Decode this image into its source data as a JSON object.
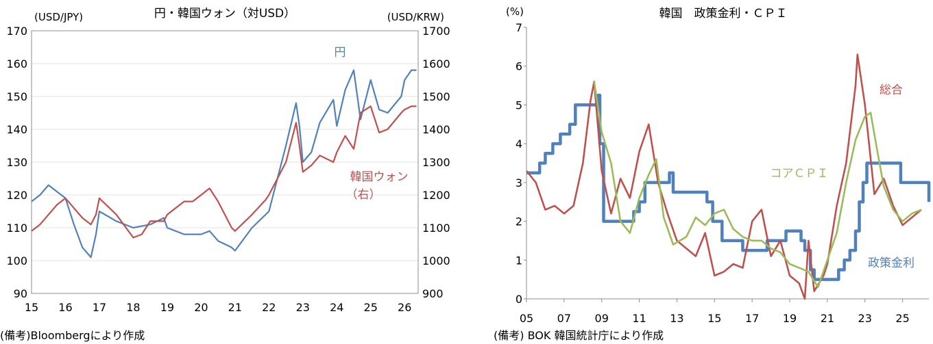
{
  "chart_data": [
    {
      "type": "line",
      "title": "円・韓国ウォン（対USD）",
      "ylabel_left": "(USD/JPY)",
      "ylabel_right": "(USD/KRW)",
      "ylim_left": [
        90,
        170
      ],
      "ylim_right": [
        900,
        1700
      ],
      "yticks_left": [
        "90",
        "100",
        "110",
        "120",
        "130",
        "140",
        "150",
        "160",
        "170"
      ],
      "yticks_right": [
        "900",
        "1000",
        "1100",
        "1200",
        "1300",
        "1400",
        "1500",
        "1600",
        "1700"
      ],
      "x_ticks": [
        "15",
        "16",
        "17",
        "18",
        "19",
        "20",
        "21",
        "22",
        "23",
        "24",
        "25",
        "26"
      ],
      "x_range": [
        2015.0,
        2026.4
      ],
      "note": "(備考)Bloombergにより作成",
      "series": [
        {
          "name": "円",
          "axis": "left",
          "color": "#4f81bd",
          "x": [
            2015.0,
            2015.25,
            2015.5,
            2015.75,
            2016.0,
            2016.25,
            2016.5,
            2016.75,
            2016.9,
            2017.0,
            2017.5,
            2018.0,
            2018.5,
            2018.9,
            2019.0,
            2019.5,
            2019.75,
            2020.0,
            2020.25,
            2020.5,
            2020.9,
            2021.0,
            2021.5,
            2021.9,
            2022.0,
            2022.25,
            2022.5,
            2022.8,
            2022.9,
            2023.0,
            2023.25,
            2023.5,
            2023.9,
            2024.0,
            2024.25,
            2024.5,
            2024.7,
            2025.0,
            2025.25,
            2025.5,
            2025.9,
            2026.0,
            2026.2,
            2026.35
          ],
          "y": [
            118,
            120,
            123,
            121,
            119,
            111,
            104,
            101,
            108,
            115,
            112,
            110,
            111,
            113,
            110,
            108,
            108,
            108,
            109,
            106,
            104,
            103,
            110,
            114,
            115,
            125,
            135,
            148,
            141,
            130,
            133,
            142,
            149,
            141,
            152,
            158,
            143,
            155,
            146,
            145,
            150,
            155,
            158,
            158
          ]
        },
        {
          "name": "韓国ウォン",
          "sublabel": "（右）",
          "axis": "right",
          "color": "#c0504d",
          "x": [
            2015.0,
            2015.25,
            2015.5,
            2015.75,
            2016.0,
            2016.25,
            2016.5,
            2016.75,
            2016.9,
            2017.0,
            2017.5,
            2018.0,
            2018.25,
            2018.5,
            2018.9,
            2019.0,
            2019.5,
            2019.75,
            2020.0,
            2020.25,
            2020.5,
            2020.9,
            2021.0,
            2021.5,
            2021.9,
            2022.0,
            2022.25,
            2022.5,
            2022.8,
            2022.9,
            2023.0,
            2023.25,
            2023.5,
            2023.9,
            2024.0,
            2024.25,
            2024.5,
            2024.7,
            2025.0,
            2025.25,
            2025.5,
            2025.9,
            2026.0,
            2026.2,
            2026.35
          ],
          "y": [
            1090,
            1110,
            1140,
            1170,
            1190,
            1160,
            1130,
            1110,
            1140,
            1190,
            1140,
            1070,
            1080,
            1120,
            1120,
            1140,
            1180,
            1180,
            1200,
            1220,
            1180,
            1100,
            1090,
            1140,
            1185,
            1200,
            1250,
            1300,
            1420,
            1350,
            1270,
            1290,
            1320,
            1300,
            1330,
            1380,
            1340,
            1450,
            1470,
            1390,
            1400,
            1450,
            1460,
            1470,
            1470
          ]
        }
      ],
      "legend": [
        {
          "text": "円",
          "color": "#4f81bd"
        },
        {
          "text": "韓国ウォン",
          "color": "#c0504d"
        },
        {
          "text": "（右）",
          "color": "#c0504d"
        }
      ]
    },
    {
      "type": "line",
      "title": "韓国　政策金利・ＣＰＩ",
      "ylabel": "(%)",
      "ylim": [
        0,
        7
      ],
      "yticks": [
        "0",
        "1",
        "2",
        "3",
        "4",
        "5",
        "6",
        "7"
      ],
      "x_ticks": [
        "05",
        "07",
        "09",
        "11",
        "13",
        "15",
        "17",
        "19",
        "21",
        "23",
        "25"
      ],
      "x_range": [
        2005.0,
        2026.4
      ],
      "note": "(備考) BOK 韓国統計庁により作成",
      "series": [
        {
          "name": "政策金利",
          "color": "#4f81bd",
          "step": true,
          "x": [
            2005.0,
            2005.7,
            2006.0,
            2006.4,
            2006.8,
            2007.3,
            2007.6,
            2008.8,
            2008.9,
            2009.1,
            2010.5,
            2010.7,
            2011.0,
            2011.3,
            2012.6,
            2012.8,
            2014.6,
            2014.9,
            2015.4,
            2016.5,
            2017.8,
            2018.8,
            2019.6,
            2019.8,
            2020.1,
            2020.3,
            2021.6,
            2021.9,
            2022.2,
            2022.5,
            2022.7,
            2022.9,
            2023.1,
            2024.7,
            2024.9,
            2026.4
          ],
          "y": [
            3.25,
            3.5,
            3.75,
            4.0,
            4.25,
            4.5,
            5.0,
            5.25,
            4.0,
            2.0,
            2.0,
            2.25,
            2.5,
            3.0,
            3.25,
            2.75,
            2.5,
            2.0,
            1.5,
            1.25,
            1.5,
            1.75,
            1.5,
            1.25,
            0.75,
            0.5,
            0.75,
            1.0,
            1.25,
            1.75,
            2.5,
            3.0,
            3.5,
            3.5,
            3.0,
            2.5
          ]
        },
        {
          "name": "総合",
          "color": "#c0504d",
          "x": [
            2005.0,
            2005.5,
            2006.0,
            2006.5,
            2007.0,
            2007.5,
            2008.0,
            2008.4,
            2008.6,
            2009.0,
            2009.5,
            2010.0,
            2010.5,
            2011.0,
            2011.5,
            2012.0,
            2012.5,
            2013.0,
            2013.5,
            2014.0,
            2014.5,
            2015.0,
            2015.5,
            2016.0,
            2016.5,
            2017.0,
            2017.5,
            2018.0,
            2018.5,
            2019.0,
            2019.5,
            2019.8,
            2020.0,
            2020.3,
            2020.8,
            2021.0,
            2021.5,
            2022.0,
            2022.5,
            2022.6,
            2023.0,
            2023.5,
            2024.0,
            2024.5,
            2025.0,
            2025.5,
            2026.0
          ],
          "y": [
            3.3,
            3.0,
            2.3,
            2.4,
            2.2,
            2.4,
            3.5,
            5.1,
            5.6,
            3.3,
            2.2,
            3.1,
            2.6,
            3.8,
            4.5,
            3.0,
            2.2,
            1.5,
            1.3,
            1.1,
            1.7,
            0.6,
            0.7,
            0.9,
            0.8,
            2.0,
            2.3,
            1.1,
            1.5,
            0.6,
            0.4,
            0.0,
            1.5,
            0.2,
            0.6,
            0.9,
            2.4,
            3.5,
            5.5,
            6.3,
            5.0,
            2.7,
            3.1,
            2.4,
            1.9,
            2.1,
            2.3
          ]
        },
        {
          "name": "コアＣＰＩ",
          "color": "#9bbb59",
          "x": [
            2008.6,
            2009.0,
            2009.5,
            2010.0,
            2010.5,
            2011.0,
            2011.5,
            2011.9,
            2012.3,
            2012.8,
            2013.5,
            2014.0,
            2014.5,
            2015.0,
            2015.5,
            2016.0,
            2016.5,
            2017.0,
            2017.5,
            2018.0,
            2018.5,
            2019.0,
            2019.5,
            2020.0,
            2020.5,
            2021.0,
            2021.5,
            2022.0,
            2022.5,
            2023.0,
            2023.3,
            2023.7,
            2024.0,
            2024.5,
            2025.0,
            2025.5,
            2026.0
          ],
          "y": [
            5.6,
            4.3,
            3.5,
            2.0,
            1.7,
            2.6,
            3.2,
            3.6,
            2.1,
            1.4,
            1.6,
            2.1,
            1.9,
            2.2,
            2.3,
            1.8,
            1.6,
            1.5,
            1.5,
            1.3,
            1.2,
            0.9,
            0.8,
            0.7,
            0.3,
            1.0,
            1.7,
            3.0,
            4.1,
            4.7,
            4.8,
            3.7,
            2.9,
            2.3,
            2.0,
            2.2,
            2.3
          ]
        }
      ],
      "legend": [
        {
          "text": "総合",
          "color": "#c0504d"
        },
        {
          "text": "コアＣＰＩ",
          "color": "#9bbb59"
        },
        {
          "text": "政策金利",
          "color": "#4f81bd"
        }
      ]
    }
  ]
}
